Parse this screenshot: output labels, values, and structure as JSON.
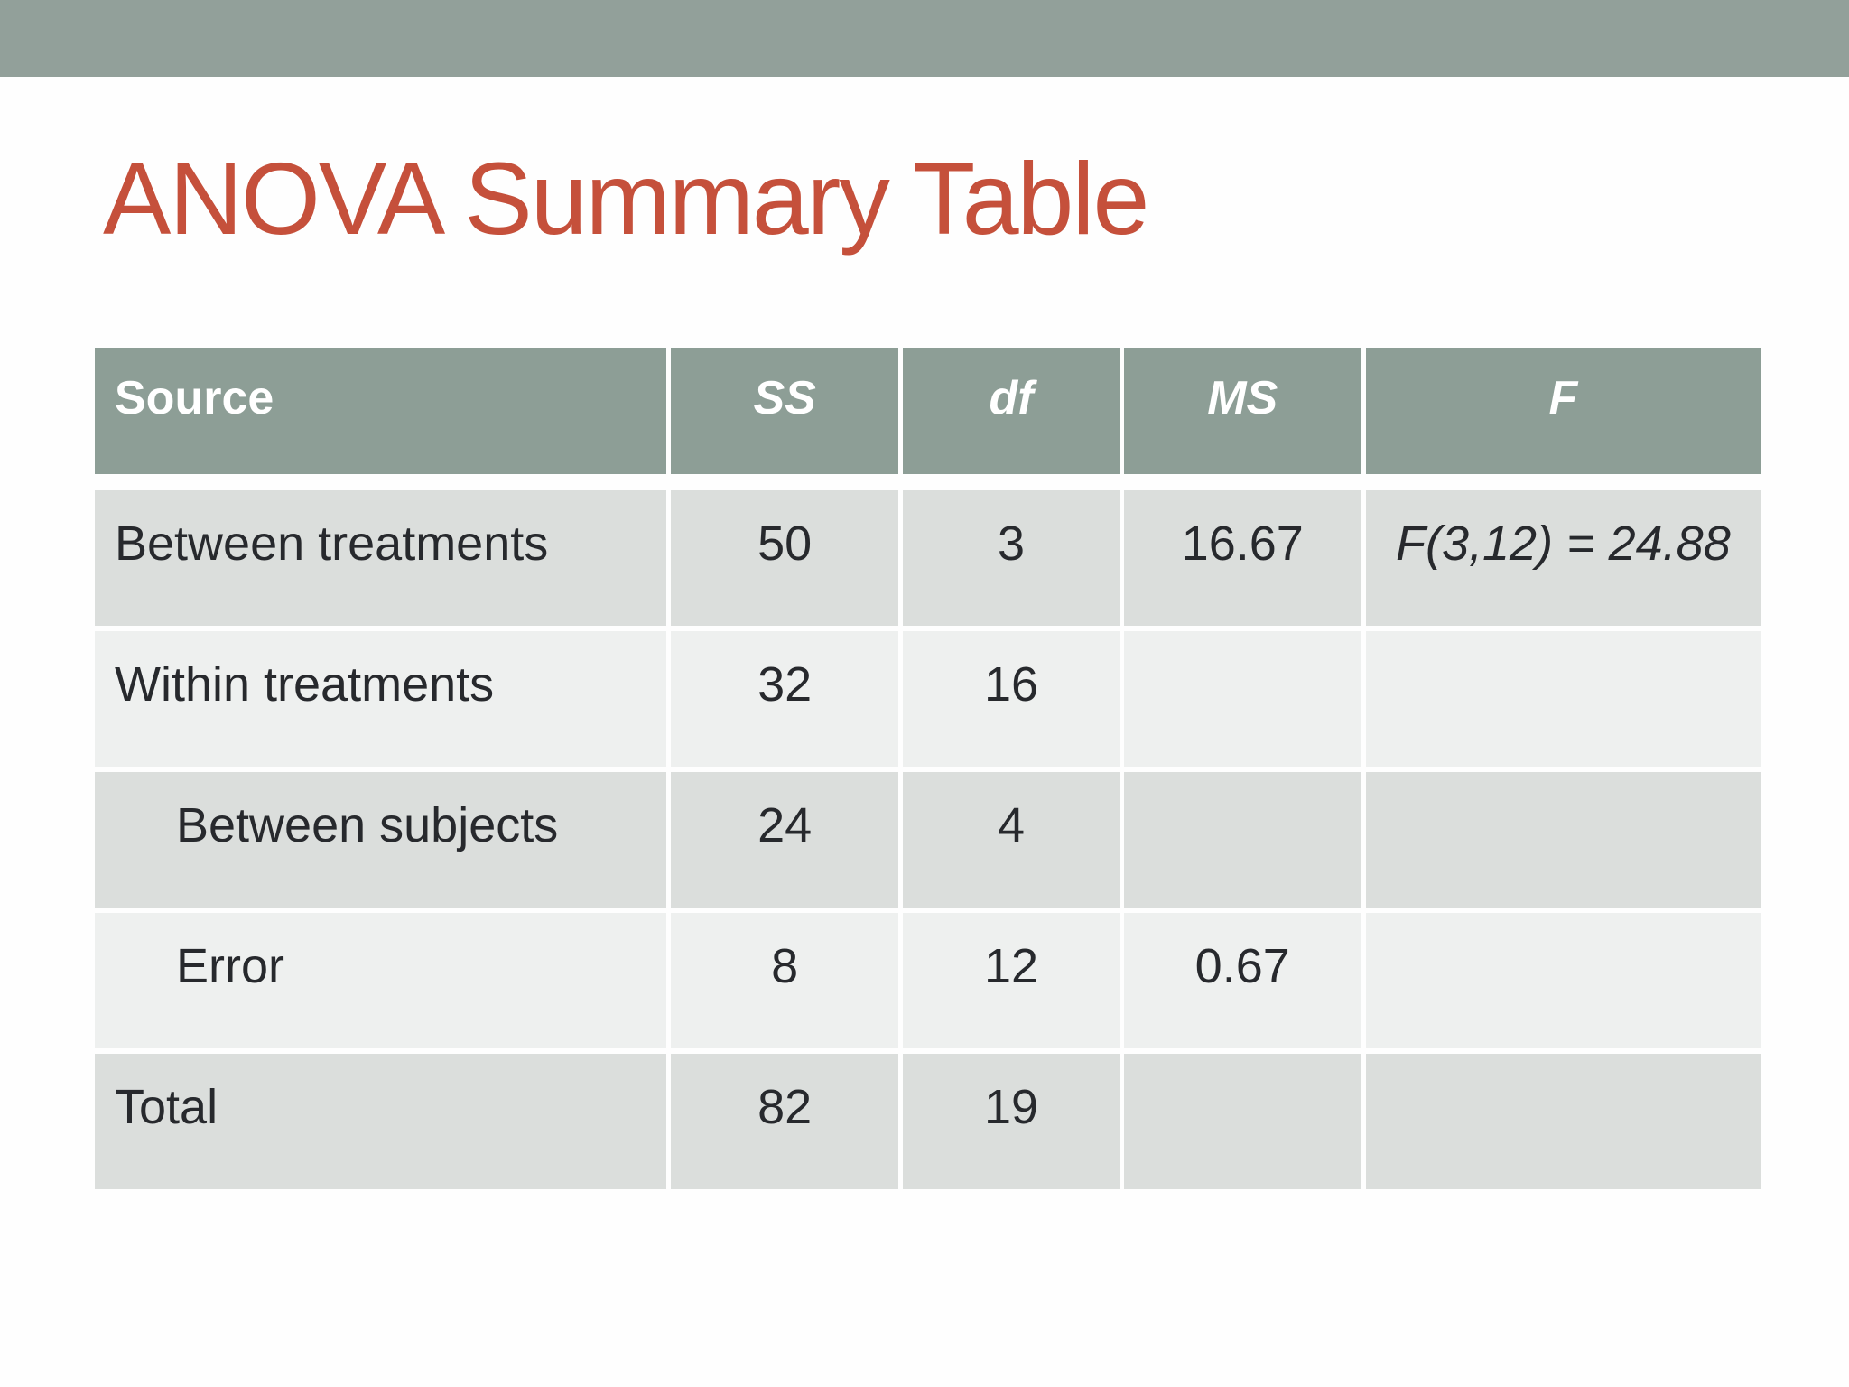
{
  "slide": {
    "title": "ANOVA Summary Table"
  },
  "colors": {
    "top_bar": "#92a09a",
    "header_bg": "#8d9e96",
    "header_text": "#ffffff",
    "row_dark": "#dbdedc",
    "row_light": "#eef0ef",
    "cell_text": "#27292d",
    "title": "#c5503b",
    "slide_bg": "#fefefe"
  },
  "table": {
    "columns": [
      "Source",
      "SS",
      "df",
      "MS",
      "F"
    ],
    "rows": [
      {
        "source": "Between treatments",
        "ss": "50",
        "df": "3",
        "ms": "16.67",
        "f": "F(3,12) = 24.88",
        "indent": false,
        "shade": "dark"
      },
      {
        "source": "Within treatments",
        "ss": "32",
        "df": "16",
        "ms": "",
        "f": "",
        "indent": false,
        "shade": "light"
      },
      {
        "source": "Between subjects",
        "ss": "24",
        "df": "4",
        "ms": "",
        "f": "",
        "indent": true,
        "shade": "dark"
      },
      {
        "source": "Error",
        "ss": "8",
        "df": "12",
        "ms": "0.67",
        "f": "",
        "indent": true,
        "shade": "light"
      },
      {
        "source": "Total",
        "ss": "82",
        "df": "19",
        "ms": "",
        "f": "",
        "indent": false,
        "shade": "dark"
      }
    ]
  }
}
